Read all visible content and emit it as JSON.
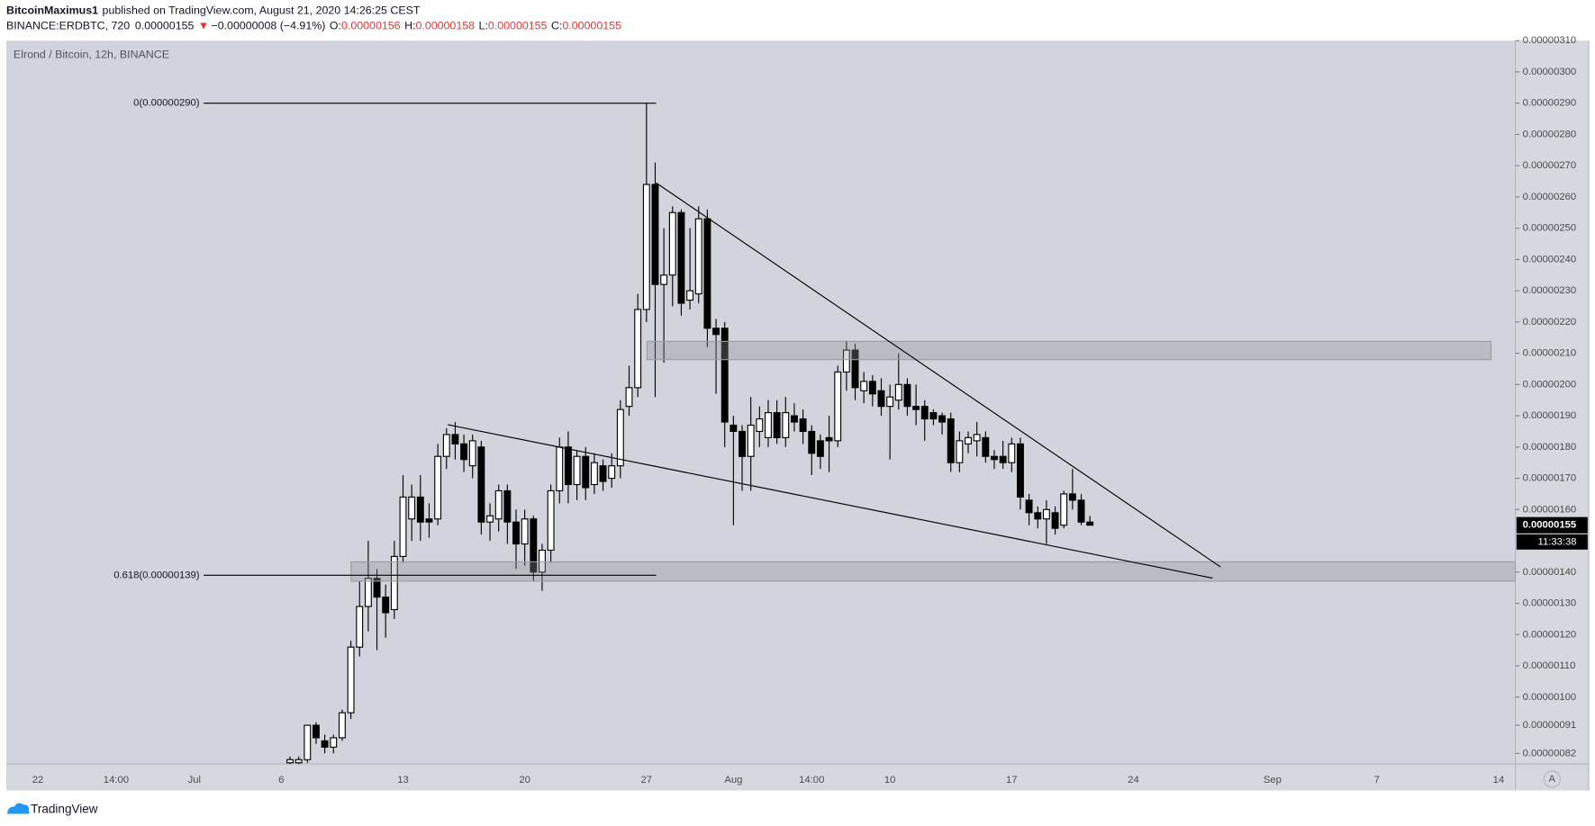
{
  "header": {
    "author": "BitcoinMaximus1",
    "published": "published on TradingView.com, August 21, 2020 14:26:25 CEST",
    "symbol": "BINANCE:ERDBTC, 720",
    "last": "0.00000155",
    "arrow": "▼",
    "change": "−0.00000008 (−4.91%)",
    "ohlc": [
      {
        "label": "O:",
        "value": "0.00000156"
      },
      {
        "label": "H:",
        "value": "0.00000158"
      },
      {
        "label": "L:",
        "value": "0.00000155"
      },
      {
        "label": "C:",
        "value": "0.00000155"
      }
    ]
  },
  "footer": {
    "brand": "TradingView",
    "scale_button": "A"
  },
  "chart_data": {
    "type": "candlestick",
    "title": "Elrond / Bitcoin, 12h, BINANCE",
    "up_color": "#ffffff",
    "down_color": "#000000",
    "categories": [
      "22",
      null,
      null,
      null,
      null,
      null,
      null,
      null,
      null,
      "14:00",
      null,
      null,
      null,
      null,
      null,
      null,
      null,
      null,
      "Jul",
      null,
      null,
      null,
      null,
      null,
      null,
      null,
      null,
      null,
      "6",
      null,
      null,
      null,
      null,
      null,
      null,
      null,
      null,
      null,
      null,
      null,
      null,
      null,
      "13",
      null,
      null,
      null,
      null,
      null,
      null,
      null,
      null,
      null,
      null,
      null,
      null,
      null,
      "20",
      null,
      null,
      null,
      null,
      null,
      null,
      null,
      null,
      null,
      null,
      null,
      null,
      null,
      "27",
      null,
      null,
      null,
      null,
      null,
      null,
      null,
      null,
      null,
      "Aug",
      null,
      null,
      null,
      null,
      null,
      null,
      null,
      null,
      "14:00",
      null,
      null,
      null,
      null,
      null,
      null,
      null,
      null,
      "10",
      null,
      null,
      null,
      null,
      null,
      null,
      null,
      null,
      null,
      null,
      null,
      null,
      null,
      "17",
      null,
      null,
      null,
      null,
      null,
      null,
      null,
      null,
      null,
      null,
      null,
      null,
      null,
      "24",
      null,
      null,
      null,
      null,
      null,
      null,
      null,
      null,
      null,
      null,
      null,
      null,
      null,
      null,
      null,
      "Sep",
      null,
      null,
      null,
      null,
      null,
      null,
      null,
      null,
      null,
      null,
      null,
      "7",
      null,
      null,
      null,
      null,
      null,
      null,
      null,
      null,
      null,
      null,
      null,
      null,
      null,
      "14",
      null
    ],
    "open": [
      null,
      null,
      null,
      null,
      null,
      null,
      null,
      null,
      null,
      null,
      null,
      null,
      null,
      null,
      null,
      null,
      null,
      null,
      null,
      null,
      null,
      null,
      null,
      null,
      null,
      null,
      null,
      null,
      null,
      7.9e-07,
      7.9e-07,
      8e-07,
      9.1e-07,
      8.6e-07,
      8.4e-07,
      8.7e-07,
      9.5e-07,
      1.16e-06,
      1.29e-06,
      1.38e-06,
      1.32e-06,
      1.28e-06,
      1.45e-06,
      1.57e-06,
      1.64e-06,
      1.57e-06,
      1.57e-06,
      1.77e-06,
      1.84e-06,
      1.81e-06,
      1.74e-06,
      1.8e-06,
      1.56e-06,
      1.57e-06,
      1.66e-06,
      1.56e-06,
      1.49e-06,
      1.57e-06,
      1.4e-06,
      1.47e-06,
      1.66e-06,
      1.8e-06,
      1.68e-06,
      1.77e-06,
      1.68e-06,
      1.74e-06,
      1.7e-06,
      1.74e-06,
      1.93e-06,
      1.99e-06,
      2.24e-06,
      2.64e-06,
      2.32e-06,
      2.35e-06,
      2.55e-06,
      2.27e-06,
      2.29e-06,
      2.53e-06,
      2.18e-06,
      2.18e-06,
      1.87e-06,
      1.85e-06,
      1.77e-06,
      1.85e-06,
      1.83e-06,
      1.91e-06,
      1.83e-06,
      1.9e-06,
      1.89e-06,
      1.85e-06,
      1.82e-06,
      1.83e-06,
      1.82e-06,
      2.04e-06,
      2.11e-06,
      1.98e-06,
      2.01e-06,
      1.98e-06,
      1.93e-06,
      1.95e-06,
      2e-06,
      1.93e-06,
      1.93e-06,
      1.91e-06,
      1.9e-06,
      1.89e-06,
      1.75e-06,
      1.81e-06,
      1.82e-06,
      1.83e-06,
      1.77e-06,
      1.77e-06,
      1.75e-06,
      1.81e-06,
      1.63e-06,
      1.59e-06,
      1.57e-06,
      1.59e-06,
      1.55e-06,
      1.65e-06,
      1.63e-06,
      1.56e-06,
      null,
      null,
      null,
      null,
      null,
      null,
      null,
      null,
      null,
      null,
      null,
      null,
      null,
      null,
      null,
      null,
      null,
      null,
      null,
      null,
      null,
      null,
      null,
      null,
      null,
      null,
      null,
      null,
      null,
      null,
      null,
      null,
      null,
      null,
      null,
      null,
      null,
      null,
      null,
      null,
      null,
      null,
      null,
      null,
      null,
      null,
      null,
      null
    ],
    "high": [
      null,
      null,
      null,
      null,
      null,
      null,
      null,
      null,
      null,
      null,
      null,
      null,
      null,
      null,
      null,
      null,
      null,
      null,
      null,
      null,
      null,
      null,
      null,
      null,
      null,
      null,
      null,
      null,
      null,
      8.1e-07,
      8.1e-07,
      9.1e-07,
      9.2e-07,
      8.8e-07,
      8.8e-07,
      9.6e-07,
      1.18e-06,
      1.37e-06,
      1.5e-06,
      1.41e-06,
      1.36e-06,
      1.5e-06,
      1.71e-06,
      1.68e-06,
      1.71e-06,
      1.62e-06,
      1.81e-06,
      1.86e-06,
      1.88e-06,
      1.84e-06,
      1.84e-06,
      1.82e-06,
      1.62e-06,
      1.68e-06,
      1.68e-06,
      1.6e-06,
      1.6e-06,
      1.58e-06,
      1.49e-06,
      1.68e-06,
      1.83e-06,
      1.85e-06,
      1.79e-06,
      1.8e-06,
      1.78e-06,
      1.76e-06,
      1.78e-06,
      1.95e-06,
      2.06e-06,
      2.29e-06,
      2.9e-06,
      2.71e-06,
      2.5e-06,
      2.57e-06,
      2.56e-06,
      2.5e-06,
      2.57e-06,
      2.56e-06,
      2.21e-06,
      2.2e-06,
      1.9e-06,
      1.87e-06,
      1.96e-06,
      1.93e-06,
      1.95e-06,
      1.95e-06,
      1.96e-06,
      1.94e-06,
      1.92e-06,
      1.87e-06,
      1.84e-06,
      1.9e-06,
      2.06e-06,
      2.14e-06,
      2.13e-06,
      2.04e-06,
      2.03e-06,
      2.02e-06,
      2e-06,
      2.1e-06,
      2.02e-06,
      2e-06,
      1.95e-06,
      1.92e-06,
      1.91e-06,
      1.91e-06,
      1.85e-06,
      1.85e-06,
      1.88e-06,
      1.85e-06,
      1.79e-06,
      1.82e-06,
      1.83e-06,
      1.83e-06,
      1.65e-06,
      1.61e-06,
      1.63e-06,
      1.61e-06,
      1.66e-06,
      1.73e-06,
      1.65e-06,
      1.58e-06,
      null,
      null,
      null,
      null,
      null,
      null,
      null,
      null,
      null,
      null,
      null,
      null,
      null,
      null,
      null,
      null,
      null,
      null,
      null,
      null,
      null,
      null,
      null,
      null,
      null,
      null,
      null,
      null,
      null,
      null,
      null,
      null,
      null,
      null,
      null,
      null,
      null,
      null,
      null,
      null,
      null,
      null,
      null,
      null,
      null,
      null,
      null,
      null
    ],
    "low": [
      null,
      null,
      null,
      null,
      null,
      null,
      null,
      null,
      null,
      null,
      null,
      null,
      null,
      null,
      null,
      null,
      null,
      null,
      null,
      null,
      null,
      null,
      null,
      null,
      null,
      null,
      null,
      null,
      null,
      7.8e-07,
      7.8e-07,
      7.9e-07,
      8.5e-07,
      8.2e-07,
      8.2e-07,
      8.6e-07,
      9.3e-07,
      1.13e-06,
      1.21e-06,
      1.15e-06,
      1.19e-06,
      1.25e-06,
      1.43e-06,
      1.5e-06,
      1.5e-06,
      1.51e-06,
      1.55e-06,
      1.73e-06,
      1.76e-06,
      1.72e-06,
      1.7e-06,
      1.52e-06,
      1.5e-06,
      1.53e-06,
      1.49e-06,
      1.41e-06,
      1.42e-06,
      1.37e-06,
      1.34e-06,
      1.43e-06,
      1.62e-06,
      1.62e-06,
      1.63e-06,
      1.63e-06,
      1.65e-06,
      1.66e-06,
      1.67e-06,
      1.7e-06,
      1.9e-06,
      1.96e-06,
      2.2e-06,
      1.96e-06,
      2.07e-06,
      2.25e-06,
      2.22e-06,
      2.24e-06,
      2.26e-06,
      2.12e-06,
      1.97e-06,
      1.8e-06,
      1.55e-06,
      1.66e-06,
      1.66e-06,
      1.8e-06,
      1.8e-06,
      1.81e-06,
      1.8e-06,
      1.85e-06,
      1.81e-06,
      1.71e-06,
      1.73e-06,
      1.72e-06,
      1.8e-06,
      1.98e-06,
      1.95e-06,
      1.94e-06,
      1.93e-06,
      1.9e-06,
      1.76e-06,
      1.92e-06,
      1.9e-06,
      1.87e-06,
      1.82e-06,
      1.87e-06,
      1.84e-06,
      1.72e-06,
      1.72e-06,
      1.78e-06,
      1.77e-06,
      1.75e-06,
      1.73e-06,
      1.73e-06,
      1.72e-06,
      1.6e-06,
      1.55e-06,
      1.54e-06,
      1.49e-06,
      1.52e-06,
      1.54e-06,
      1.6e-06,
      1.55e-06,
      1.55e-06,
      null,
      null,
      null,
      null,
      null,
      null,
      null,
      null,
      null,
      null,
      null,
      null,
      null,
      null,
      null,
      null,
      null,
      null,
      null,
      null,
      null,
      null,
      null,
      null,
      null,
      null,
      null,
      null,
      null,
      null,
      null,
      null,
      null,
      null,
      null,
      null,
      null,
      null,
      null,
      null,
      null,
      null,
      null,
      null,
      null,
      null,
      null,
      null
    ],
    "close": [
      null,
      null,
      null,
      null,
      null,
      null,
      null,
      null,
      null,
      null,
      null,
      null,
      null,
      null,
      null,
      null,
      null,
      null,
      null,
      null,
      null,
      null,
      null,
      null,
      null,
      null,
      null,
      null,
      null,
      8e-07,
      8e-07,
      9.1e-07,
      8.7e-07,
      8.4e-07,
      8.7e-07,
      9.5e-07,
      1.16e-06,
      1.29e-06,
      1.38e-06,
      1.32e-06,
      1.27e-06,
      1.45e-06,
      1.64e-06,
      1.64e-06,
      1.56e-06,
      1.56e-06,
      1.77e-06,
      1.84e-06,
      1.81e-06,
      1.76e-06,
      1.82e-06,
      1.56e-06,
      1.58e-06,
      1.66e-06,
      1.56e-06,
      1.49e-06,
      1.57e-06,
      1.4e-06,
      1.47e-06,
      1.66e-06,
      1.8e-06,
      1.68e-06,
      1.77e-06,
      1.67e-06,
      1.75e-06,
      1.69e-06,
      1.74e-06,
      1.92e-06,
      1.99e-06,
      2.24e-06,
      2.64e-06,
      2.32e-06,
      2.35e-06,
      2.55e-06,
      2.26e-06,
      2.3e-06,
      2.53e-06,
      2.18e-06,
      2.16e-06,
      1.88e-06,
      1.85e-06,
      1.77e-06,
      1.87e-06,
      1.89e-06,
      1.91e-06,
      1.83e-06,
      1.91e-06,
      1.88e-06,
      1.85e-06,
      1.78e-06,
      1.77e-06,
      1.82e-06,
      2.04e-06,
      2.11e-06,
      1.99e-06,
      2.01e-06,
      1.97e-06,
      1.93e-06,
      1.96e-06,
      2e-06,
      1.93e-06,
      1.92e-06,
      1.89e-06,
      1.89e-06,
      1.88e-06,
      1.75e-06,
      1.82e-06,
      1.83e-06,
      1.84e-06,
      1.77e-06,
      1.76e-06,
      1.75e-06,
      1.81e-06,
      1.64e-06,
      1.59e-06,
      1.57e-06,
      1.6e-06,
      1.54e-06,
      1.65e-06,
      1.63e-06,
      1.56e-06,
      1.55e-06,
      null,
      null,
      null,
      null,
      null,
      null,
      null,
      null,
      null,
      null,
      null,
      null,
      null,
      null,
      null,
      null,
      null,
      null,
      null,
      null,
      null,
      null,
      null,
      null,
      null,
      null,
      null,
      null,
      null,
      null,
      null,
      null,
      null,
      null,
      null,
      null,
      null,
      null,
      null,
      null,
      null,
      null,
      null,
      null,
      null,
      null,
      null,
      null
    ],
    "ylim": [
      7.86e-07,
      3.1e-06
    ],
    "yticks": [
      {
        "value": 3.1e-06,
        "label": "0.00000310"
      },
      {
        "value": 3e-06,
        "label": "0.00000300"
      },
      {
        "value": 2.9e-06,
        "label": "0.00000290"
      },
      {
        "value": 2.8e-06,
        "label": "0.00000280"
      },
      {
        "value": 2.7e-06,
        "label": "0.00000270"
      },
      {
        "value": 2.6e-06,
        "label": "0.00000260"
      },
      {
        "value": 2.5e-06,
        "label": "0.00000250"
      },
      {
        "value": 2.4e-06,
        "label": "0.00000240"
      },
      {
        "value": 2.3e-06,
        "label": "0.00000230"
      },
      {
        "value": 2.2e-06,
        "label": "0.00000220"
      },
      {
        "value": 2.1e-06,
        "label": "0.00000210"
      },
      {
        "value": 2e-06,
        "label": "0.00000200"
      },
      {
        "value": 1.9e-06,
        "label": "0.00000190"
      },
      {
        "value": 1.8e-06,
        "label": "0.00000180"
      },
      {
        "value": 1.7e-06,
        "label": "0.00000170"
      },
      {
        "value": 1.6e-06,
        "label": "0.00000160"
      },
      {
        "value": 1.4e-06,
        "label": "0.00000140"
      },
      {
        "value": 1.3e-06,
        "label": "0.00000130"
      },
      {
        "value": 1.2e-06,
        "label": "0.00000120"
      },
      {
        "value": 1.1e-06,
        "label": "0.00000110"
      },
      {
        "value": 1e-06,
        "label": "0.00000100"
      },
      {
        "value": 9.1e-07,
        "label": "0.00000091"
      },
      {
        "value": 8.2e-07,
        "label": "0.00000082"
      }
    ],
    "last_price": {
      "value": 1.55e-06,
      "label": "0.00000155"
    },
    "countdown": "11:33:38",
    "fib_levels": [
      {
        "value": 2.9e-06,
        "label": "0(0.00000290)"
      },
      {
        "value": 1.39e-06,
        "label": "0.618(0.00000139)"
      }
    ]
  }
}
